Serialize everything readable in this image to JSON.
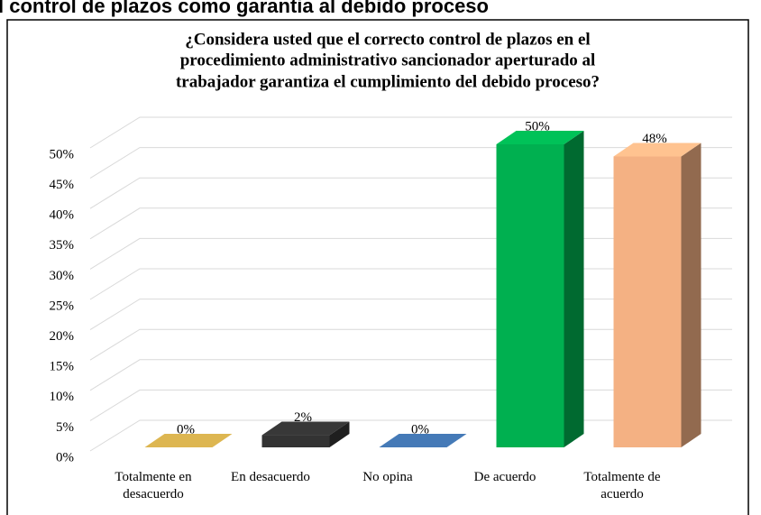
{
  "heading": "l control de plazos como garantia al debido proceso",
  "chart_data": {
    "type": "bar3d",
    "title": [
      "¿Considera usted que el correcto control de plazos en el",
      "procedimiento administrativo sancionador aperturado al",
      "trabajador garantiza el cumplimiento del debido proceso?"
    ],
    "categories": [
      "Totalmente en desacuerdo",
      "En desacuerdo",
      "No opina",
      "De acuerdo",
      "Totalmente de acuerdo"
    ],
    "values": [
      0,
      2,
      0,
      50,
      48
    ],
    "value_labels": [
      "0%",
      "2%",
      "0%",
      "50%",
      "48%"
    ],
    "colors": [
      "#c9a54a",
      "#333333",
      "#3f6fa6",
      "#00b050",
      "#f4b183"
    ],
    "ylim": [
      0,
      50
    ],
    "yticks": [
      {
        "value": 0,
        "label": "0%"
      },
      {
        "value": 5,
        "label": "5%"
      },
      {
        "value": 10,
        "label": "10%"
      },
      {
        "value": 15,
        "label": "15%"
      },
      {
        "value": 20,
        "label": "20%"
      },
      {
        "value": 25,
        "label": "25%"
      },
      {
        "value": 30,
        "label": "30%"
      },
      {
        "value": 35,
        "label": "35%"
      },
      {
        "value": 40,
        "label": "40%"
      },
      {
        "value": 45,
        "label": "45%"
      },
      {
        "value": 50,
        "label": "50%"
      }
    ],
    "grid": true
  }
}
